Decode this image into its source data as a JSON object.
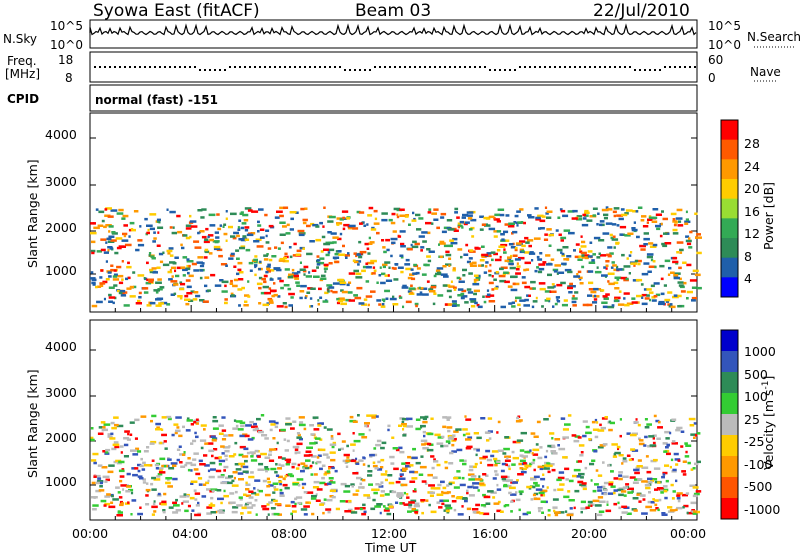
{
  "header": {
    "title": "Syowa East (fitACF)",
    "beam": "Beam 03",
    "date": "22/Jul/2010"
  },
  "panels": {
    "nsky_label": "N.Sky",
    "nsky_ticks": [
      "10^5",
      "10^0"
    ],
    "nsearch_label": "N.Search",
    "freq_label_1": "Freq.",
    "freq_label_2": "[MHz]",
    "freq_ticks": [
      "18",
      "8"
    ],
    "nave_label": "Nave",
    "nave_ticks": [
      "60",
      "0"
    ],
    "cpid_label": "CPID",
    "cpid_value": "normal (fast) -151"
  },
  "chart_data": [
    {
      "type": "heatmap",
      "title": "",
      "xlabel": "",
      "ylabel": "Slant Range [km]",
      "yticks": [
        "4000",
        "3000",
        "2000",
        "1000"
      ],
      "ylim": [
        180,
        4500
      ],
      "xlim": [
        "00:00",
        "24:00"
      ],
      "colorbar": {
        "label": "Power [dB]",
        "ticks": [
          "28",
          "24",
          "20",
          "16",
          "12",
          "8",
          "4"
        ],
        "colors": [
          "#ff0000",
          "#ff5a00",
          "#ff9900",
          "#ffcc00",
          "#99dd33",
          "#33aa55",
          "#2e8b57",
          "#1f5faa",
          "#0000ff"
        ]
      }
    },
    {
      "type": "heatmap",
      "title": "",
      "xlabel": "Time UT",
      "ylabel": "Slant Range [km]",
      "xticks": [
        "00:00",
        "04:00",
        "08:00",
        "12:00",
        "16:00",
        "20:00",
        "00:00"
      ],
      "yticks": [
        "4000",
        "3000",
        "2000",
        "1000"
      ],
      "ylim": [
        180,
        4500
      ],
      "xlim": [
        "00:00",
        "24:00"
      ],
      "colorbar": {
        "label": "Velocity [m s",
        "label_sup": "-1",
        "label_end": "]",
        "ticks": [
          "1000",
          "500",
          "100",
          "25",
          "-25",
          "-100",
          "-500",
          "-1000"
        ],
        "colors": [
          "#0000cc",
          "#3355bb",
          "#2e8b57",
          "#33cc33",
          "#bbbbbb",
          "#ffcc00",
          "#ff9900",
          "#ff5500",
          "#ff0000"
        ]
      }
    }
  ]
}
